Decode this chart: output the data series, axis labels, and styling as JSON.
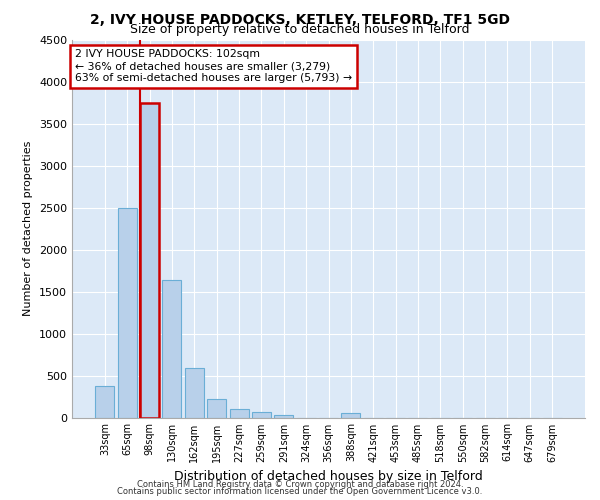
{
  "title_line1": "2, IVY HOUSE PADDOCKS, KETLEY, TELFORD, TF1 5GD",
  "title_line2": "Size of property relative to detached houses in Telford",
  "xlabel": "Distribution of detached houses by size in Telford",
  "ylabel": "Number of detached properties",
  "categories": [
    "33sqm",
    "65sqm",
    "98sqm",
    "130sqm",
    "162sqm",
    "195sqm",
    "227sqm",
    "259sqm",
    "291sqm",
    "324sqm",
    "356sqm",
    "388sqm",
    "421sqm",
    "453sqm",
    "485sqm",
    "518sqm",
    "550sqm",
    "582sqm",
    "614sqm",
    "647sqm",
    "679sqm"
  ],
  "values": [
    370,
    2500,
    3750,
    1640,
    590,
    225,
    105,
    60,
    35,
    0,
    0,
    55,
    0,
    0,
    0,
    0,
    0,
    0,
    0,
    0,
    0
  ],
  "bar_color": "#b8d0ea",
  "bar_edge_color": "#6aaed6",
  "highlight_bar_index": 2,
  "vline_color": "#cc0000",
  "annotation_text": "2 IVY HOUSE PADDOCKS: 102sqm\n← 36% of detached houses are smaller (3,279)\n63% of semi-detached houses are larger (5,793) →",
  "annotation_box_edgecolor": "#cc0000",
  "annotation_box_facecolor": "white",
  "ylim": [
    0,
    4500
  ],
  "yticks": [
    0,
    500,
    1000,
    1500,
    2000,
    2500,
    3000,
    3500,
    4000,
    4500
  ],
  "plot_bg_color": "#dce9f7",
  "grid_color": "#ffffff",
  "footer_line1": "Contains HM Land Registry data © Crown copyright and database right 2024.",
  "footer_line2": "Contains public sector information licensed under the Open Government Licence v3.0."
}
